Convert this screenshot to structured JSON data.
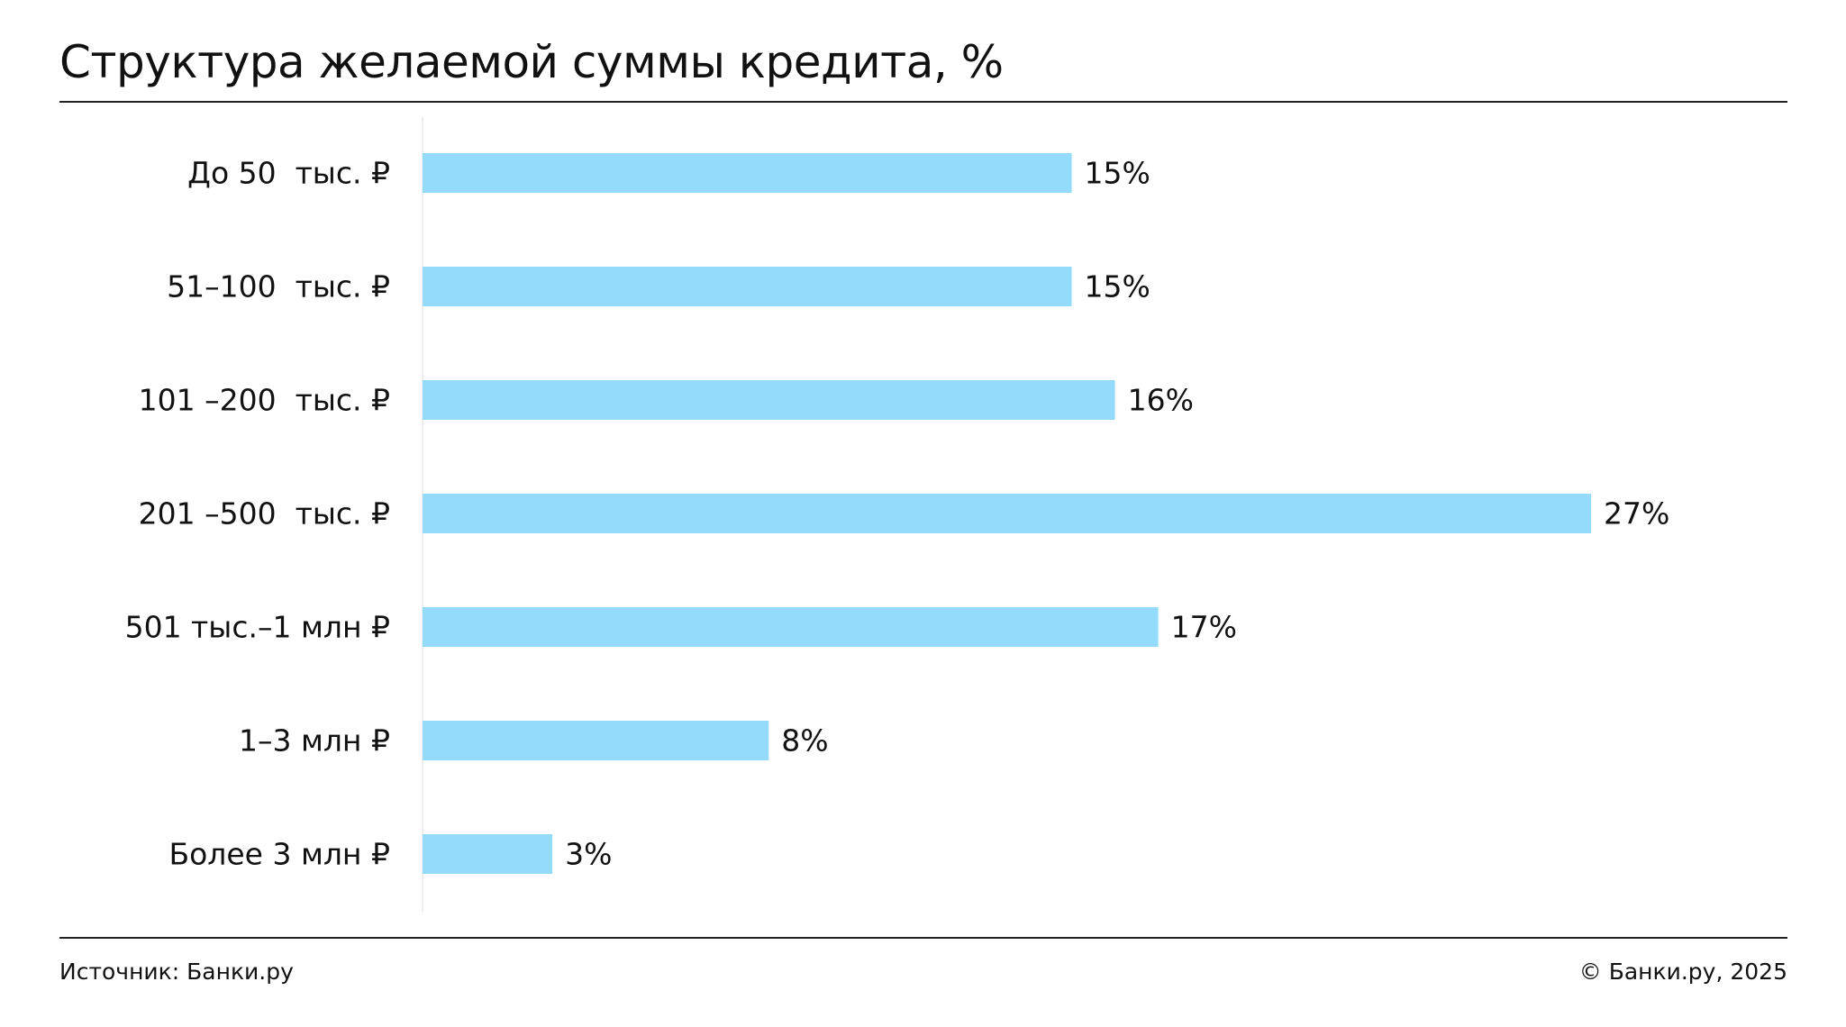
{
  "header": {
    "title": "Структура желаемой суммы кредита, %"
  },
  "footer": {
    "source": "Источник: Банки.ру",
    "copyright": "© Банки.ру, 2025"
  },
  "colors": {
    "bar": "#93dafb",
    "axis": "#eeeeee",
    "text": "#111111"
  },
  "chart_data": {
    "type": "bar",
    "orientation": "horizontal",
    "categories": [
      "До 50  тыс. ₽",
      "51–100  тыс. ₽",
      "101 –200  тыс. ₽",
      "201 –500  тыс. ₽",
      "501 тыс.–1 млн ₽",
      "1–3 млн ₽",
      "Более 3 млн ₽"
    ],
    "values": [
      15,
      15,
      16,
      27,
      17,
      8,
      3
    ],
    "value_labels": [
      "15%",
      "15%",
      "16%",
      "27%",
      "17%",
      "8%",
      "3%"
    ],
    "title": "Структура желаемой суммы кредита, %",
    "xlabel": "",
    "ylabel": "",
    "xlim": [
      0,
      27.5
    ],
    "grid": false,
    "legend": "none"
  }
}
